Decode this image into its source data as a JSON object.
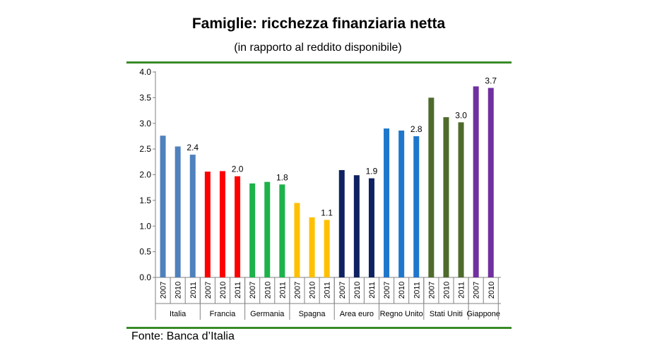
{
  "title": "Famiglie: ricchezza finanziaria netta",
  "subtitle": "(in rapporto al reddito disponibile)",
  "source": "Fonte: Banca d’Italia",
  "chart_data": {
    "type": "bar",
    "ylim": [
      0,
      4
    ],
    "yticks": [
      "0.0",
      "0.5",
      "1.0",
      "1.5",
      "2.0",
      "2.5",
      "3.0",
      "3.5",
      "4.0"
    ],
    "grid": false,
    "groups": [
      {
        "name": "Italia",
        "color": "#4f81bd",
        "bars": [
          {
            "year": "2007",
            "value": 2.76
          },
          {
            "year": "2010",
            "value": 2.55
          },
          {
            "year": "2011",
            "value": 2.39,
            "label": "2.4"
          }
        ]
      },
      {
        "name": "Francia",
        "color": "#ff0000",
        "bars": [
          {
            "year": "2007",
            "value": 2.06
          },
          {
            "year": "2010",
            "value": 2.07
          },
          {
            "year": "2011",
            "value": 1.97,
            "label": "2.0"
          }
        ]
      },
      {
        "name": "Germania",
        "color": "#1eb24b",
        "bars": [
          {
            "year": "2007",
            "value": 1.83
          },
          {
            "year": "2010",
            "value": 1.86
          },
          {
            "year": "2011",
            "value": 1.81,
            "label": "1.8"
          }
        ]
      },
      {
        "name": "Spagna",
        "color": "#ffc000",
        "bars": [
          {
            "year": "2007",
            "value": 1.45
          },
          {
            "year": "2010",
            "value": 1.17
          },
          {
            "year": "2011",
            "value": 1.12,
            "label": "1.1"
          }
        ]
      },
      {
        "name": "Area euro",
        "color": "#0f2160",
        "bars": [
          {
            "year": "2007",
            "value": 2.09
          },
          {
            "year": "2010",
            "value": 1.99
          },
          {
            "year": "2011",
            "value": 1.93,
            "label": "1.9"
          }
        ]
      },
      {
        "name": "Regno Unito",
        "color": "#1f77cc",
        "bars": [
          {
            "year": "2007",
            "value": 2.9
          },
          {
            "year": "2010",
            "value": 2.86
          },
          {
            "year": "2011",
            "value": 2.75,
            "label": "2.8"
          }
        ]
      },
      {
        "name": "Stati Uniti",
        "color": "#4e6b2c",
        "bars": [
          {
            "year": "2007",
            "value": 3.5
          },
          {
            "year": "2010",
            "value": 3.12
          },
          {
            "year": "2011",
            "value": 3.02,
            "label": "3.0"
          }
        ]
      },
      {
        "name": "Giappone",
        "color": "#7030a0",
        "bars": [
          {
            "year": "2007",
            "value": 3.72
          },
          {
            "year": "2010",
            "value": 3.69,
            "label": "3.7"
          }
        ]
      }
    ]
  }
}
